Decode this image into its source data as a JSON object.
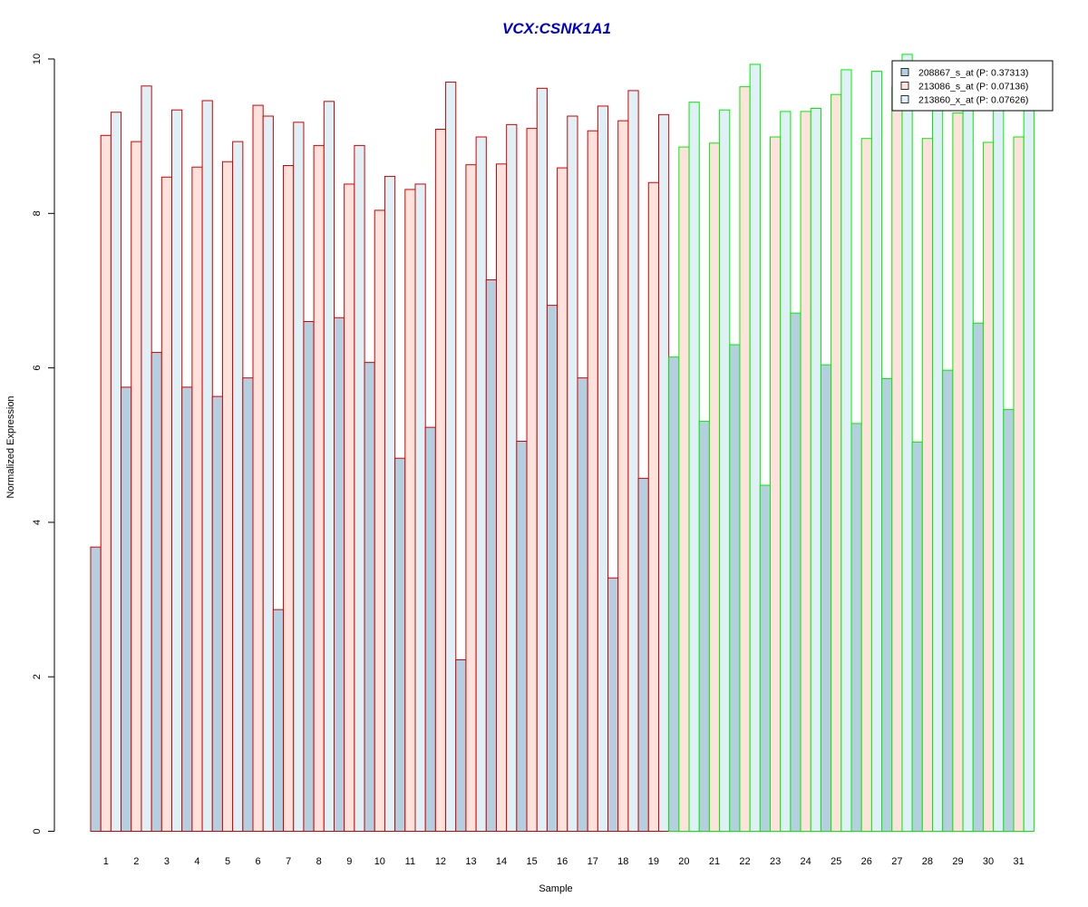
{
  "chart_data": {
    "type": "bar",
    "title": "VCX:CSNK1A1",
    "xlabel": "Sample",
    "ylabel": "Normalized Expression",
    "ylim": [
      0,
      10
    ],
    "yticks": [
      "0",
      "2",
      "4",
      "6",
      "8",
      "10"
    ],
    "categories": [
      "1",
      "2",
      "3",
      "4",
      "5",
      "6",
      "7",
      "8",
      "9",
      "10",
      "11",
      "12",
      "13",
      "14",
      "15",
      "16",
      "17",
      "18",
      "19",
      "20",
      "21",
      "22",
      "23",
      "24",
      "25",
      "26",
      "27",
      "28",
      "29",
      "30",
      "31"
    ],
    "group_border_colors": {
      "group_a": "#d40000",
      "group_b": "#00ee00"
    },
    "group_a_count": 19,
    "series": [
      {
        "name": "208867_s_at (P: 0.37313)",
        "fill": "#b4cfe0",
        "values": [
          3.68,
          5.75,
          6.2,
          5.75,
          5.63,
          5.87,
          2.87,
          6.6,
          6.65,
          6.07,
          4.83,
          5.23,
          2.22,
          7.14,
          5.05,
          6.81,
          5.87,
          3.28,
          4.57,
          6.14,
          5.31,
          6.3,
          4.48,
          6.71,
          6.04,
          5.28,
          5.86,
          5.04,
          5.97,
          6.58,
          5.46
        ]
      },
      {
        "name": "213086_s_at (P: 0.07136)",
        "fill": "#ffe2dc",
        "values": [
          9.01,
          8.93,
          8.47,
          8.6,
          8.67,
          9.4,
          8.62,
          8.88,
          8.38,
          8.04,
          8.31,
          9.09,
          8.63,
          8.64,
          9.1,
          8.59,
          9.07,
          9.2,
          8.4,
          8.86,
          8.91,
          9.64,
          8.99,
          9.32,
          9.54,
          8.97,
          9.64,
          8.97,
          9.3,
          8.92,
          8.99
        ]
      },
      {
        "name": "213860_x_at (P: 0.07626)",
        "fill": "#dff1f7",
        "values": [
          9.31,
          9.65,
          9.34,
          9.46,
          8.93,
          9.26,
          9.18,
          9.45,
          8.88,
          8.48,
          8.38,
          9.7,
          8.99,
          9.15,
          9.62,
          9.26,
          9.39,
          9.59,
          9.28,
          9.44,
          9.34,
          9.93,
          9.32,
          9.36,
          9.86,
          9.84,
          10.06,
          9.55,
          9.47,
          9.4,
          9.55
        ]
      }
    ],
    "legend_position": "top-right",
    "grid": false
  }
}
